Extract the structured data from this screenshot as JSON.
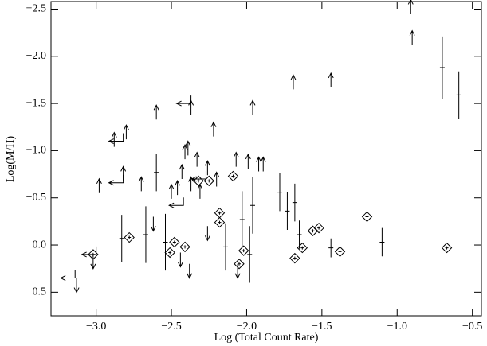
{
  "chart_data": {
    "type": "scatter",
    "x_label": "Log (Total Count Rate)",
    "y_label": "Log(M/H)",
    "xlim": [
      -3.3,
      -0.44
    ],
    "ylim": [
      -2.58,
      0.75
    ],
    "invert_y": true,
    "color": "#000000",
    "xticks": [
      {
        "value": -3.0,
        "label": "−3.0"
      },
      {
        "value": -2.5,
        "label": "−2.5"
      },
      {
        "value": -2.0,
        "label": "−2.0"
      },
      {
        "value": -1.5,
        "label": "−1.5"
      },
      {
        "value": -1.0,
        "label": "−1.0"
      },
      {
        "value": -0.5,
        "label": "−0.5"
      }
    ],
    "yticks": [
      {
        "value": -2.5,
        "label": "−2.5"
      },
      {
        "value": -2.0,
        "label": "−2.0"
      },
      {
        "value": -1.5,
        "label": "−1.5"
      },
      {
        "value": -1.0,
        "label": "−1.0"
      },
      {
        "value": -0.5,
        "label": "−0.5"
      },
      {
        "value": 0.0,
        "label": "0.0"
      },
      {
        "value": 0.5,
        "label": "0.5"
      }
    ],
    "upper_limits": {
      "x": [
        -0.91,
        -0.9,
        -1.69,
        -1.44,
        -1.96,
        -2.6,
        -2.88,
        -2.8,
        -2.37,
        -2.22,
        -2.98,
        -2.82,
        -2.7,
        -1.99,
        -1.92,
        -1.89,
        -2.07,
        -2.41,
        -2.39,
        -2.33,
        -2.5,
        -2.46,
        -2.26,
        -2.2,
        -2.43,
        -2.37,
        -2.31
      ],
      "y": [
        -2.45,
        -2.12,
        -1.65,
        -1.67,
        -1.38,
        -1.33,
        -1.04,
        -1.12,
        -1.38,
        -1.15,
        -0.55,
        -0.68,
        -0.57,
        -0.81,
        -0.78,
        -0.78,
        -0.83,
        -0.91,
        -0.95,
        -0.83,
        -0.49,
        -0.53,
        -0.74,
        -0.62,
        -0.7,
        -0.57,
        -0.49
      ]
    },
    "lower_limits": {
      "x": [
        -3.13,
        -3.02,
        -2.62,
        -2.44,
        -2.38,
        -2.26,
        -2.06
      ],
      "y": [
        0.35,
        0.1,
        -0.3,
        0.08,
        0.2,
        -0.2,
        0.2
      ]
    },
    "left_limits": {
      "x": [
        -2.37,
        -2.82,
        -2.82,
        -3.0,
        -3.14,
        -2.42,
        -2.27
      ],
      "y": [
        -1.5,
        -1.1,
        -0.66,
        0.1,
        0.35,
        -0.42,
        -0.7
      ]
    },
    "error_points": {
      "x": [
        -0.59,
        -0.7,
        -1.1,
        -2.6,
        -1.78,
        -1.73,
        -1.68,
        -1.96,
        -2.83,
        -2.67,
        -2.03,
        -1.98,
        -1.65,
        -1.44,
        -2.54,
        -2.14
      ],
      "y": [
        -1.59,
        -1.88,
        -0.03,
        -0.77,
        -0.56,
        -0.36,
        -0.45,
        -0.42,
        -0.07,
        -0.11,
        -0.27,
        0.1,
        -0.11,
        0.03,
        -0.03,
        0.02
      ],
      "yerr": [
        0.25,
        0.33,
        0.15,
        0.2,
        0.2,
        0.2,
        0.2,
        0.3,
        0.25,
        0.3,
        0.3,
        0.3,
        0.15,
        0.1,
        0.3,
        0.25
      ]
    },
    "diamonds": {
      "x": [
        -3.02,
        -2.78,
        -2.48,
        -2.41,
        -2.32,
        -2.25,
        -2.18,
        -2.18,
        -2.09,
        -2.02,
        -2.05,
        -1.68,
        -1.63,
        -1.56,
        -1.52,
        -1.38,
        -1.2,
        -0.67,
        -2.51
      ],
      "y": [
        0.1,
        -0.08,
        -0.03,
        0.02,
        -0.68,
        -0.68,
        -0.34,
        -0.24,
        -0.73,
        0.06,
        0.2,
        0.14,
        0.03,
        -0.15,
        -0.18,
        0.07,
        -0.3,
        0.03,
        0.08
      ]
    }
  }
}
